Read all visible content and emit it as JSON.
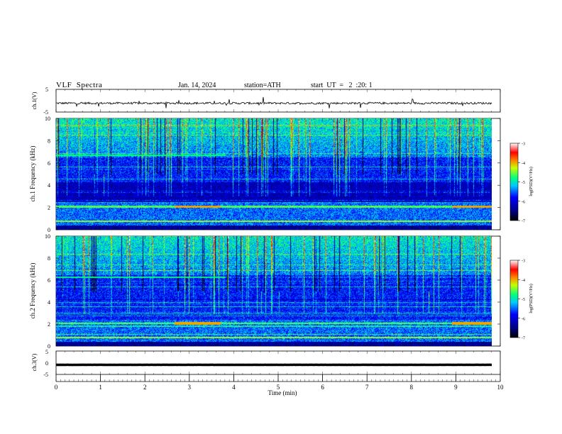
{
  "header": {
    "title": "VLF  Spectra",
    "date": "Jan. 14, 2024",
    "station": "station=ATH",
    "start": "start  UT  =   2  :20: 1"
  },
  "chart_data": [
    {
      "id": "ch1-waveform",
      "type": "line",
      "ylabel": "ch.1(V)",
      "ylim": [
        -5,
        5
      ],
      "ytick_labels": [
        "5",
        "-5"
      ],
      "xlim": [
        0,
        10
      ],
      "baseline": -1.1
    },
    {
      "id": "ch1-spectrogram",
      "type": "heatmap",
      "ylabel": "ch.1\nFrequency (kHz)",
      "ylim": [
        0,
        10
      ],
      "ytick_labels": [
        "0",
        "2",
        "4",
        "6",
        "8",
        "10"
      ],
      "xlim": [
        0,
        10
      ],
      "colorbar": {
        "label": "log(PSD)(V²/Hz)",
        "range": [
          -7,
          -3
        ],
        "tick_labels": [
          "-3",
          "-4",
          "-5",
          "-6",
          "-7"
        ]
      }
    },
    {
      "id": "ch2-spectrogram",
      "type": "heatmap",
      "ylabel": "ch.2\nFrequency (kHz)",
      "ylim": [
        0,
        10
      ],
      "ytick_labels": [
        "0",
        "2",
        "4",
        "6",
        "8",
        "10"
      ],
      "xlim": [
        0,
        10
      ],
      "colorbar": {
        "label": "log(PSD)(V²/Hz)",
        "range": [
          -7,
          -3
        ],
        "tick_labels": [
          "-3",
          "-4",
          "-5",
          "-6",
          "-7"
        ]
      }
    },
    {
      "id": "ch3-waveform",
      "type": "line",
      "ylabel": "ch.3(V)",
      "ylim": [
        -5,
        5
      ],
      "ytick_labels": [
        "5",
        "0",
        "-5"
      ],
      "xlim": [
        0,
        10
      ],
      "baseline": -0.9
    }
  ],
  "xaxis": {
    "label": "Time  (min)",
    "tick_labels": [
      "0",
      "1",
      "2",
      "3",
      "4",
      "5",
      "6",
      "7",
      "8",
      "9",
      "10"
    ],
    "range": [
      0,
      10
    ]
  },
  "colors": {
    "frame": "#000000",
    "background": "#ffffff"
  }
}
